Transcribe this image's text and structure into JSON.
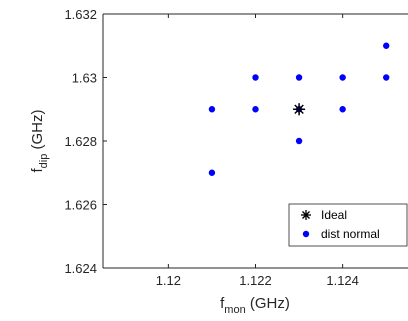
{
  "chart_data": {
    "type": "scatter",
    "xlabel": {
      "main": "f",
      "sub": "mon",
      "unit": " (GHz)"
    },
    "ylabel": {
      "main": "f",
      "sub": "dip",
      "unit": " (GHz)"
    },
    "xlim": [
      1.1185,
      1.1255
    ],
    "ylim": [
      1.624,
      1.632
    ],
    "xticks": [
      1.12,
      1.122,
      1.124
    ],
    "xtick_labels": [
      "1.12",
      "1.122",
      "1.124"
    ],
    "yticks": [
      1.624,
      1.626,
      1.628,
      1.63,
      1.632
    ],
    "ytick_labels": [
      "1.624",
      "1.626",
      "1.628",
      "1.63",
      "1.632"
    ],
    "grid": false,
    "legend_position": "bottom-right",
    "series": [
      {
        "name": "Ideal",
        "marker": "asterisk",
        "color": "#000000",
        "points": [
          [
            1.123,
            1.629
          ]
        ]
      },
      {
        "name": "dist normal",
        "marker": "dot",
        "color": "#0000ff",
        "points": [
          [
            1.121,
            1.627
          ],
          [
            1.121,
            1.629
          ],
          [
            1.122,
            1.629
          ],
          [
            1.122,
            1.63
          ],
          [
            1.123,
            1.628
          ],
          [
            1.123,
            1.629
          ],
          [
            1.123,
            1.63
          ],
          [
            1.124,
            1.629
          ],
          [
            1.124,
            1.63
          ],
          [
            1.125,
            1.63
          ],
          [
            1.125,
            1.631
          ]
        ]
      }
    ]
  }
}
